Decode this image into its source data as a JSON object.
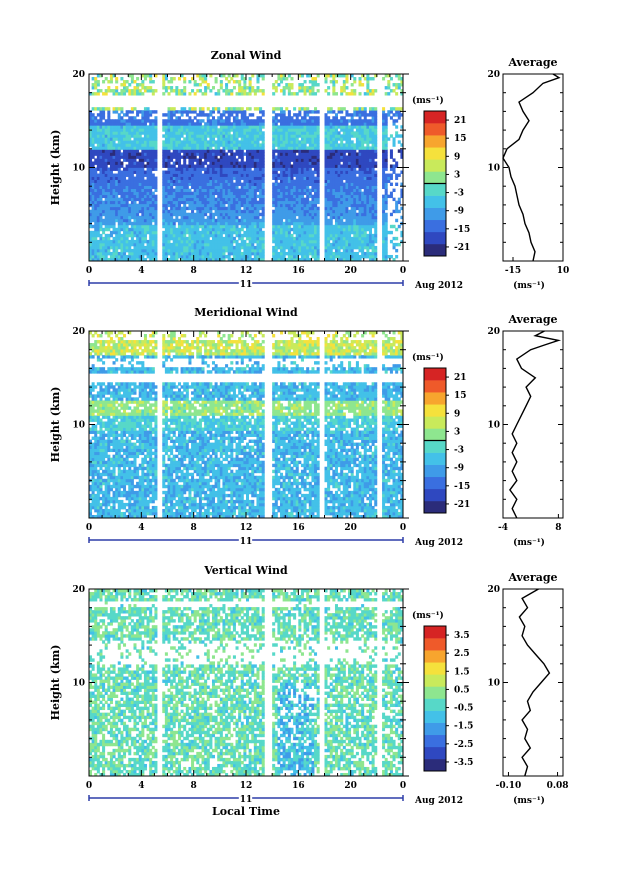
{
  "chart_data": [
    {
      "type": "heatmap",
      "title": "Zonal Wind",
      "ylabel": "Height (km)",
      "y_ticks": [
        "10",
        "20"
      ],
      "x_ticks": [
        "0",
        "4",
        "8",
        "12",
        "16",
        "20",
        "0"
      ],
      "date_label": "11",
      "date_suffix": "Aug 2012",
      "ylim": [
        0,
        20
      ],
      "colorbar": {
        "unit": "(ms⁻¹)",
        "ticks": [
          "21",
          "15",
          "9",
          "3",
          "-3",
          "-9",
          "-15",
          "-21"
        ],
        "range": [
          -24,
          24
        ]
      },
      "profile": {
        "title": "Average",
        "x_ticks": [
          "-15",
          "10"
        ],
        "xlabel": "(ms⁻¹)",
        "y_ticks": [
          "10",
          "20"
        ],
        "xlim": [
          -20,
          10
        ],
        "points": [
          [
            -5,
            0
          ],
          [
            -4,
            1
          ],
          [
            -6,
            2
          ],
          [
            -7,
            3
          ],
          [
            -9,
            4
          ],
          [
            -10,
            5
          ],
          [
            -12,
            6
          ],
          [
            -13,
            7
          ],
          [
            -14,
            8
          ],
          [
            -16,
            9
          ],
          [
            -17,
            10
          ],
          [
            -20,
            11
          ],
          [
            -18,
            12
          ],
          [
            -12,
            13
          ],
          [
            -10,
            14
          ],
          [
            -7,
            15
          ],
          [
            -10,
            16
          ],
          [
            -12,
            17
          ],
          [
            -5,
            18
          ],
          [
            0,
            19
          ],
          [
            8,
            19.6
          ],
          [
            5,
            20
          ]
        ]
      }
    },
    {
      "type": "heatmap",
      "title": "Meridional Wind",
      "ylabel": "Height (km)",
      "y_ticks": [
        "10",
        "20"
      ],
      "x_ticks": [
        "0",
        "4",
        "8",
        "12",
        "16",
        "20",
        "0"
      ],
      "date_label": "11",
      "date_suffix": "Aug 2012",
      "ylim": [
        0,
        20
      ],
      "colorbar": {
        "unit": "(ms⁻¹)",
        "ticks": [
          "21",
          "15",
          "9",
          "3",
          "-3",
          "-9",
          "-15",
          "-21"
        ],
        "range": [
          -24,
          24
        ]
      },
      "profile": {
        "title": "Average",
        "x_ticks": [
          "-4",
          "8"
        ],
        "xlabel": "(ms⁻¹)",
        "y_ticks": [
          "10",
          "20"
        ],
        "xlim": [
          -4,
          9
        ],
        "points": [
          [
            -1,
            0
          ],
          [
            -2,
            1
          ],
          [
            -1,
            2
          ],
          [
            -2.5,
            3
          ],
          [
            -1,
            4
          ],
          [
            -2,
            5
          ],
          [
            -1,
            6
          ],
          [
            -2,
            7
          ],
          [
            -1,
            8
          ],
          [
            -2,
            9
          ],
          [
            -1,
            10
          ],
          [
            0,
            11
          ],
          [
            1,
            12
          ],
          [
            2,
            13
          ],
          [
            1,
            14
          ],
          [
            3,
            15
          ],
          [
            0,
            16
          ],
          [
            -1,
            17
          ],
          [
            2,
            18
          ],
          [
            5,
            18.5
          ],
          [
            8,
            19
          ],
          [
            3,
            19.5
          ],
          [
            5,
            20
          ]
        ]
      }
    },
    {
      "type": "heatmap",
      "title": "Vertical Wind",
      "ylabel": "Height (km)",
      "y_ticks": [
        "10",
        "20"
      ],
      "x_ticks": [
        "0",
        "4",
        "8",
        "12",
        "16",
        "20",
        "0"
      ],
      "date_label": "11",
      "date_suffix": "Aug 2012",
      "xlabel": "Local Time",
      "ylim": [
        0,
        20
      ],
      "colorbar": {
        "unit": "(ms⁻¹)",
        "ticks": [
          "3.5",
          "2.5",
          "1.5",
          "0.5",
          "-0.5",
          "-1.5",
          "-2.5",
          "-3.5"
        ],
        "range": [
          -4,
          4
        ]
      },
      "profile": {
        "title": "Average",
        "x_ticks": [
          "-0.10",
          "0.08"
        ],
        "xlabel": "(ms⁻¹)",
        "y_ticks": [
          "10",
          "20"
        ],
        "xlim": [
          -0.12,
          0.1
        ],
        "points": [
          [
            -0.04,
            0
          ],
          [
            -0.03,
            1
          ],
          [
            -0.05,
            2
          ],
          [
            -0.02,
            3
          ],
          [
            -0.04,
            4
          ],
          [
            -0.03,
            5
          ],
          [
            -0.05,
            6
          ],
          [
            -0.02,
            7
          ],
          [
            -0.03,
            8
          ],
          [
            -0.01,
            9
          ],
          [
            0.02,
            10
          ],
          [
            0.05,
            11
          ],
          [
            0.03,
            12
          ],
          [
            0.0,
            13
          ],
          [
            -0.03,
            14
          ],
          [
            -0.05,
            15
          ],
          [
            -0.04,
            16
          ],
          [
            -0.06,
            17
          ],
          [
            -0.03,
            18
          ],
          [
            -0.05,
            19
          ],
          [
            0.01,
            20
          ]
        ]
      }
    }
  ]
}
